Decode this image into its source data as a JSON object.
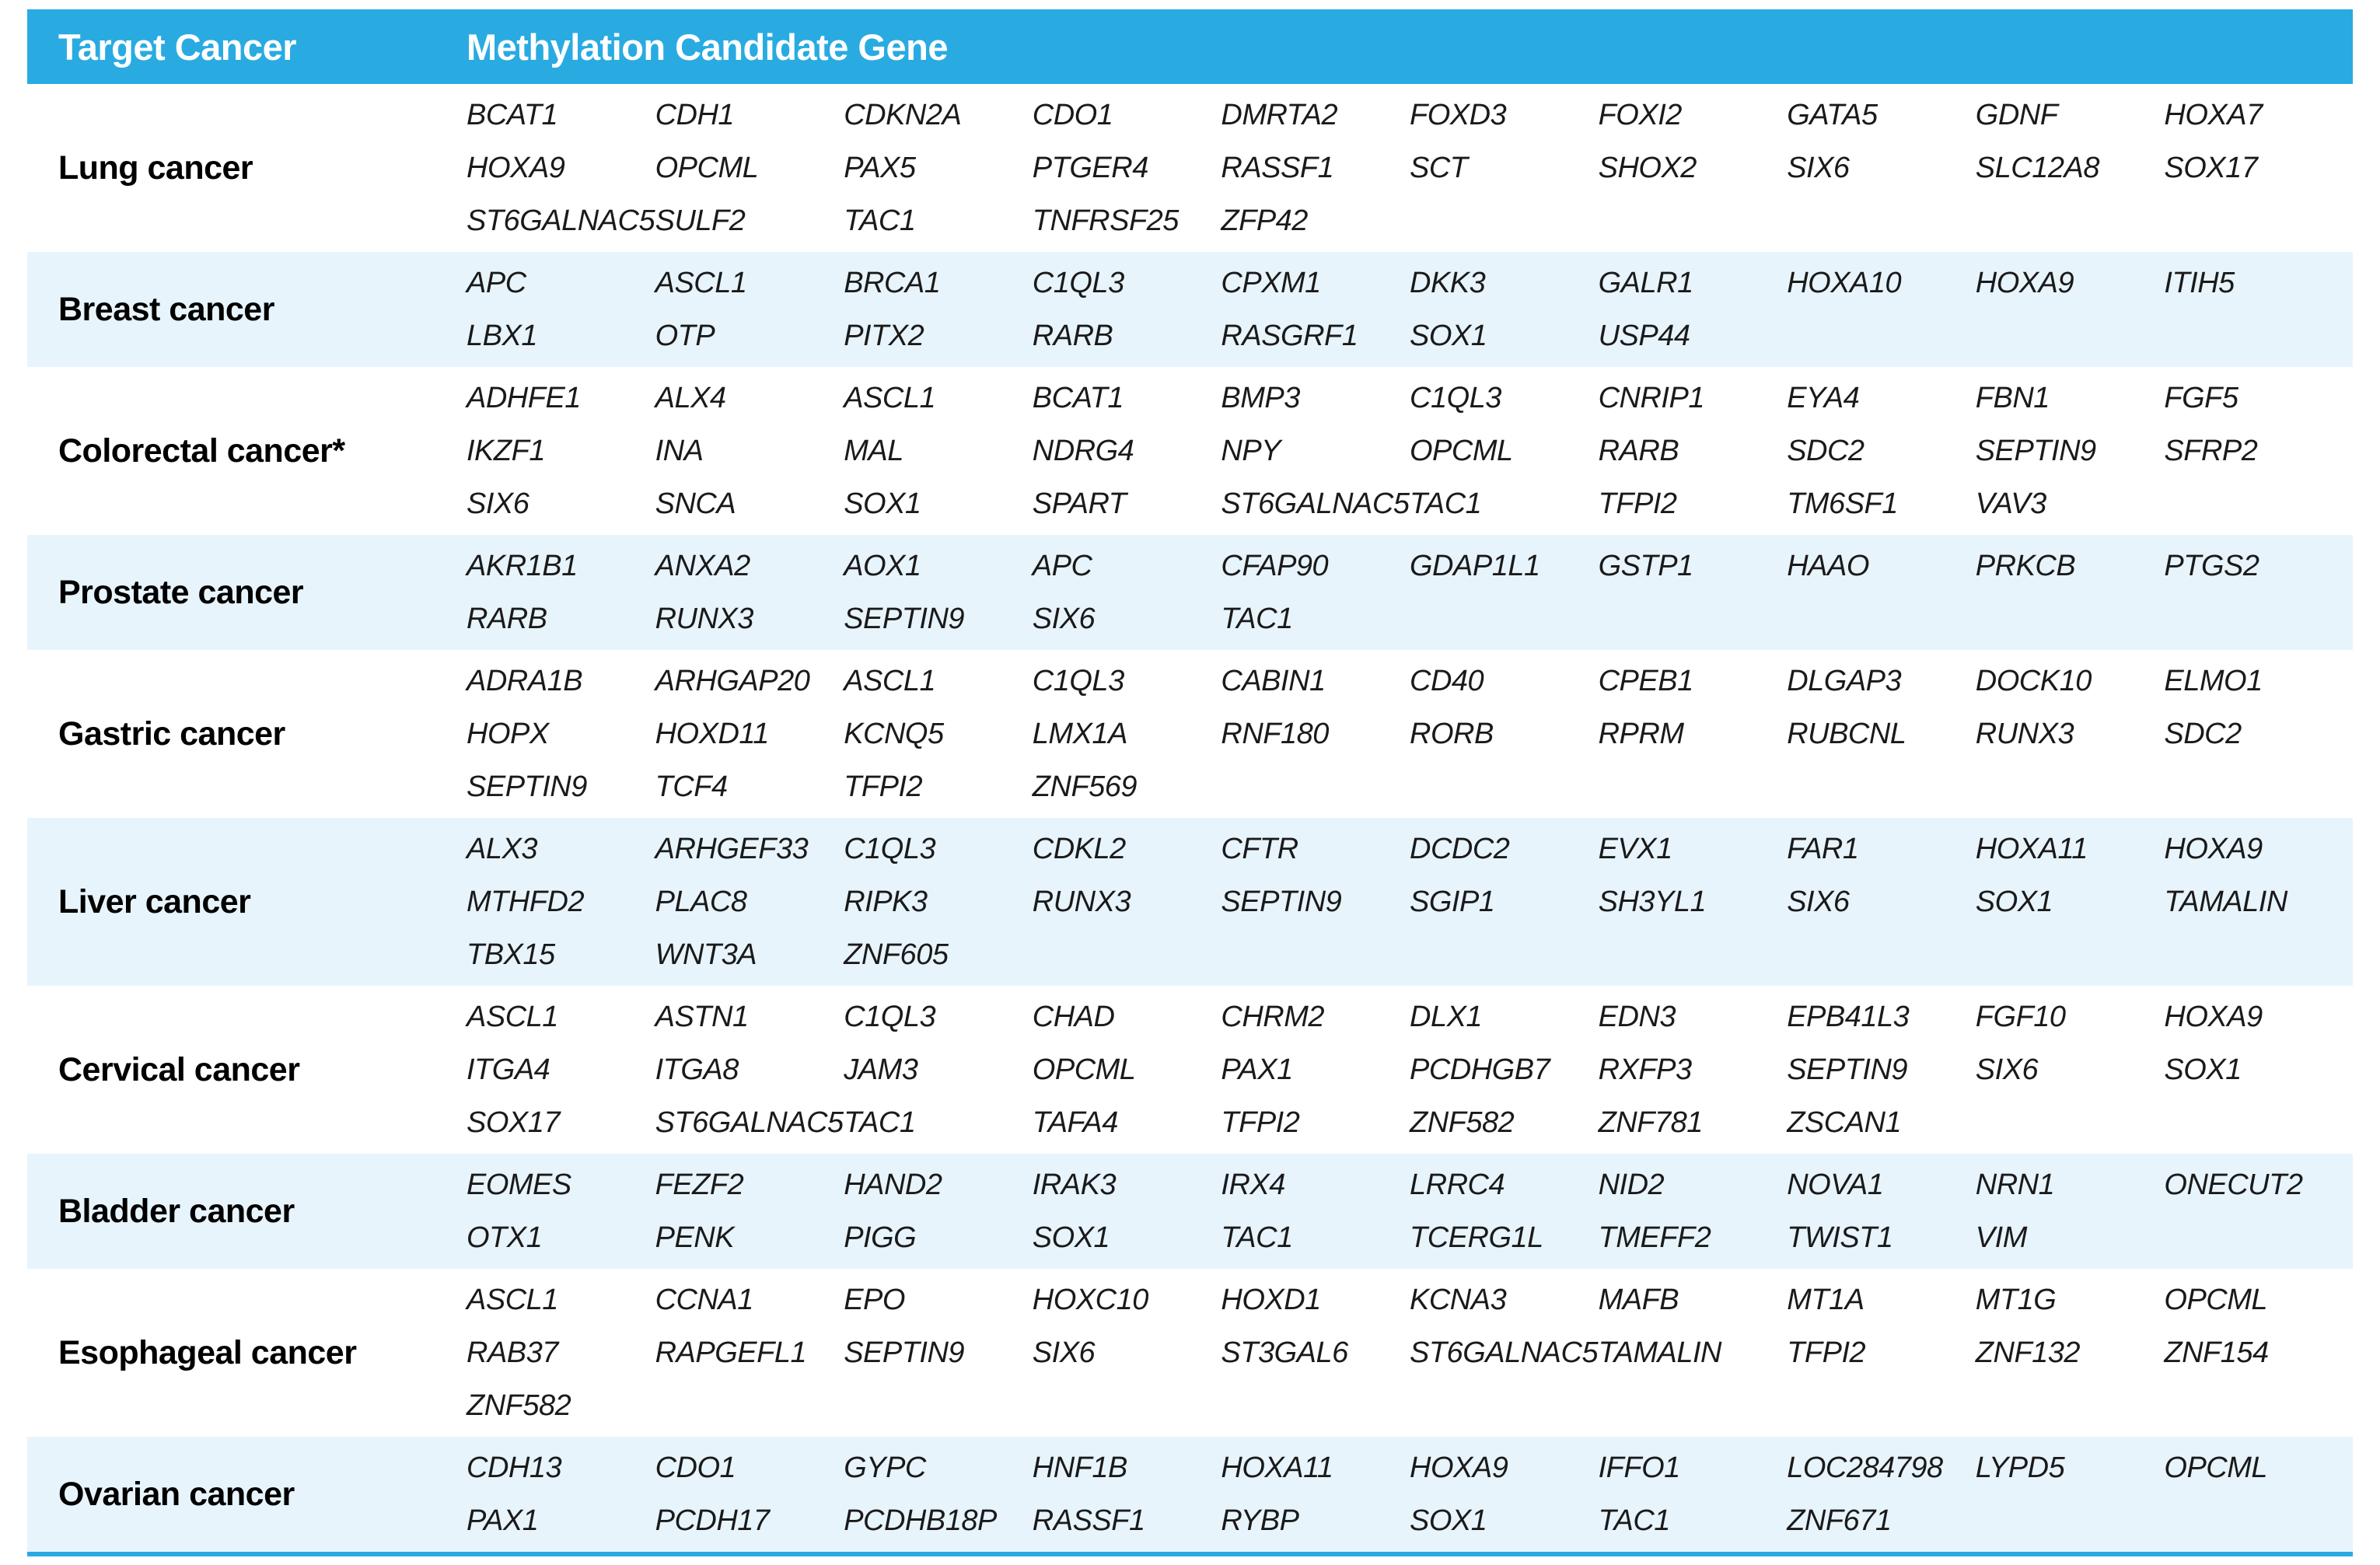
{
  "colors": {
    "header_bg": "#29ABE2",
    "header_text": "#ffffff",
    "row_bg": "#ffffff",
    "row_alt_bg": "#E8F4FC",
    "gene_text": "#1a1a1a",
    "cancer_text": "#000000",
    "bottom_border": "#29ABE2"
  },
  "table": {
    "header": {
      "target_cancer": "Target Cancer",
      "methylation_candidate_gene": "Methylation Candidate Gene"
    },
    "columns_per_row": 10,
    "rows": [
      {
        "cancer": "Lung cancer",
        "genes": [
          "BCAT1",
          "CDH1",
          "CDKN2A",
          "CDO1",
          "DMRTA2",
          "FOXD3",
          "FOXI2",
          "GATA5",
          "GDNF",
          "HOXA7",
          "HOXA9",
          "OPCML",
          "PAX5",
          "PTGER4",
          "RASSF1",
          "SCT",
          "SHOX2",
          "SIX6",
          "SLC12A8",
          "SOX17",
          "ST6GALNAC5",
          "SULF2",
          "TAC1",
          "TNFRSF25",
          "ZFP42"
        ]
      },
      {
        "cancer": "Breast cancer",
        "genes": [
          "APC",
          "ASCL1",
          "BRCA1",
          "C1QL3",
          "CPXM1",
          "DKK3",
          "GALR1",
          "HOXA10",
          "HOXA9",
          "ITIH5",
          "LBX1",
          "OTP",
          "PITX2",
          "RARB",
          "RASGRF1",
          "SOX1",
          "USP44"
        ]
      },
      {
        "cancer": "Colorectal cancer*",
        "genes": [
          "ADHFE1",
          "ALX4",
          "ASCL1",
          "BCAT1",
          "BMP3",
          "C1QL3",
          "CNRIP1",
          "EYA4",
          "FBN1",
          "FGF5",
          "IKZF1",
          "INA",
          "MAL",
          "NDRG4",
          "NPY",
          "OPCML",
          "RARB",
          "SDC2",
          "SEPTIN9",
          "SFRP2",
          "SIX6",
          "SNCA",
          "SOX1",
          "SPART",
          "ST6GALNAC5",
          "TAC1",
          "TFPI2",
          "TM6SF1",
          "VAV3"
        ]
      },
      {
        "cancer": "Prostate cancer",
        "genes": [
          "AKR1B1",
          "ANXA2",
          "AOX1",
          "APC",
          "CFAP90",
          "GDAP1L1",
          "GSTP1",
          "HAAO",
          "PRKCB",
          "PTGS2",
          "RARB",
          "RUNX3",
          "SEPTIN9",
          "SIX6",
          "TAC1"
        ]
      },
      {
        "cancer": "Gastric cancer",
        "genes": [
          "ADRA1B",
          "ARHGAP20",
          "ASCL1",
          "C1QL3",
          "CABIN1",
          "CD40",
          "CPEB1",
          "DLGAP3",
          "DOCK10",
          "ELMO1",
          "HOPX",
          "HOXD11",
          "KCNQ5",
          "LMX1A",
          "RNF180",
          "RORB",
          "RPRM",
          "RUBCNL",
          "RUNX3",
          "SDC2",
          "SEPTIN9",
          "TCF4",
          "TFPI2",
          "ZNF569"
        ]
      },
      {
        "cancer": "Liver cancer",
        "genes": [
          "ALX3",
          "ARHGEF33",
          "C1QL3",
          "CDKL2",
          "CFTR",
          "DCDC2",
          "EVX1",
          "FAR1",
          "HOXA11",
          "HOXA9",
          "MTHFD2",
          "PLAC8",
          "RIPK3",
          "RUNX3",
          "SEPTIN9",
          "SGIP1",
          "SH3YL1",
          "SIX6",
          "SOX1",
          "TAMALIN",
          "TBX15",
          "WNT3A",
          "ZNF605"
        ]
      },
      {
        "cancer": "Cervical cancer",
        "genes": [
          "ASCL1",
          "ASTN1",
          "C1QL3",
          "CHAD",
          "CHRM2",
          "DLX1",
          "EDN3",
          "EPB41L3",
          "FGF10",
          "HOXA9",
          "ITGA4",
          "ITGA8",
          "JAM3",
          "OPCML",
          "PAX1",
          "PCDHGB7",
          "RXFP3",
          "SEPTIN9",
          "SIX6",
          "SOX1",
          "SOX17",
          "ST6GALNAC5",
          "TAC1",
          "TAFA4",
          "TFPI2",
          "ZNF582",
          "ZNF781",
          "ZSCAN1"
        ]
      },
      {
        "cancer": "Bladder cancer",
        "genes": [
          "EOMES",
          "FEZF2",
          "HAND2",
          "IRAK3",
          "IRX4",
          "LRRC4",
          "NID2",
          "NOVA1",
          "NRN1",
          "ONECUT2",
          "OTX1",
          "PENK",
          "PIGG",
          "SOX1",
          "TAC1",
          "TCERG1L",
          "TMEFF2",
          "TWIST1",
          "VIM"
        ]
      },
      {
        "cancer": "Esophageal cancer",
        "genes": [
          "ASCL1",
          "CCNA1",
          "EPO",
          "HOXC10",
          "HOXD1",
          "KCNA3",
          "MAFB",
          "MT1A",
          "MT1G",
          "OPCML",
          "RAB37",
          "RAPGEFL1",
          "SEPTIN9",
          "SIX6",
          "ST3GAL6",
          "ST6GALNAC5",
          "TAMALIN",
          "TFPI2",
          "ZNF132",
          "ZNF154",
          "ZNF582"
        ]
      },
      {
        "cancer": "Ovarian cancer",
        "genes": [
          "CDH13",
          "CDO1",
          "GYPC",
          "HNF1B",
          "HOXA11",
          "HOXA9",
          "IFFO1",
          "LOC284798",
          "LYPD5",
          "OPCML",
          "PAX1",
          "PCDH17",
          "PCDHB18P",
          "RASSF1",
          "RYBP",
          "SOX1",
          "TAC1",
          "ZNF671"
        ]
      }
    ]
  }
}
